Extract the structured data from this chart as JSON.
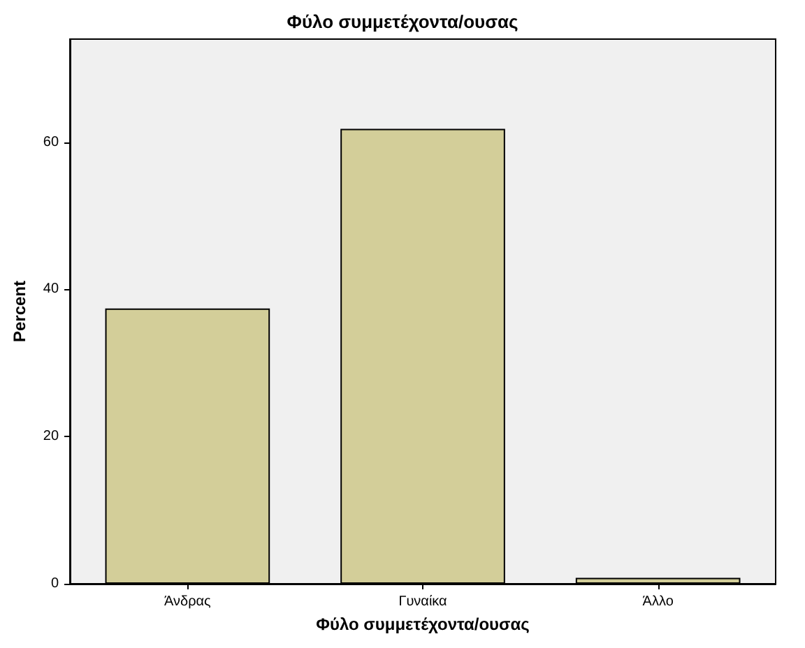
{
  "chart_data": {
    "type": "bar",
    "title": "Φύλο συμμετέχοντα/ουσας",
    "xlabel": "Φύλο συμμετέχοντα/ουσας",
    "ylabel": "Percent",
    "categories": [
      "Άνδρας",
      "Γυναίκα",
      "Άλλο"
    ],
    "values": [
      37.4,
      61.8,
      0.8
    ],
    "color": "#d3ce99",
    "ylim": [
      0,
      74
    ],
    "yticks": [
      0,
      20,
      40,
      60
    ],
    "grid": false
  }
}
